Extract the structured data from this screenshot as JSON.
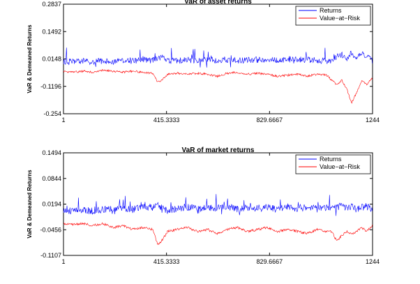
{
  "chart_data": [
    {
      "type": "line",
      "title": "VaR of asset returns",
      "xlabel": "",
      "ylabel": "VaR & Demeaned Returns",
      "xlim": [
        1,
        1244
      ],
      "ylim": [
        -0.254,
        0.2837
      ],
      "xticks": [
        "1",
        "415.3333",
        "829.6667",
        "1244"
      ],
      "yticks": [
        "0.2837",
        "0.1492",
        "0.0148",
        "-0.1196",
        "-0.254"
      ],
      "legend": {
        "position": "top-right",
        "entries": [
          "Returns",
          "Value−at−Risk"
        ]
      },
      "series": [
        {
          "name": "Returns",
          "color": "#0000ff",
          "x": [
            1,
            40,
            80,
            120,
            160,
            200,
            240,
            280,
            320,
            360,
            380,
            400,
            420,
            460,
            500,
            540,
            580,
            620,
            660,
            700,
            740,
            780,
            820,
            860,
            900,
            940,
            980,
            1020,
            1060,
            1080,
            1100,
            1120,
            1140,
            1160,
            1180,
            1200,
            1220,
            1244
          ],
          "values": [
            0.01,
            0.005,
            0.012,
            0.004,
            0.015,
            0.0,
            0.025,
            0.01,
            0.03,
            0.02,
            0.05,
            0.06,
            0.015,
            0.02,
            0.025,
            0.02,
            0.03,
            0.025,
            0.035,
            0.02,
            0.025,
            0.03,
            0.03,
            0.025,
            0.04,
            0.03,
            0.035,
            0.02,
            0.015,
            0.02,
            0.08,
            0.1,
            0.05,
            0.13,
            0.07,
            0.11,
            0.08,
            0.02
          ]
        },
        {
          "name": "Value−at−Risk",
          "color": "#ff0000",
          "x": [
            1,
            40,
            80,
            120,
            160,
            200,
            240,
            280,
            320,
            360,
            380,
            400,
            420,
            460,
            500,
            540,
            580,
            620,
            660,
            700,
            740,
            780,
            820,
            860,
            900,
            940,
            980,
            1020,
            1060,
            1080,
            1100,
            1120,
            1140,
            1160,
            1180,
            1200,
            1220,
            1244
          ],
          "values": [
            -0.045,
            -0.05,
            -0.045,
            -0.05,
            -0.04,
            -0.045,
            -0.05,
            -0.045,
            -0.05,
            -0.055,
            -0.1,
            -0.085,
            -0.06,
            -0.055,
            -0.06,
            -0.055,
            -0.06,
            -0.07,
            -0.055,
            -0.05,
            -0.06,
            -0.055,
            -0.06,
            -0.07,
            -0.065,
            -0.06,
            -0.07,
            -0.06,
            -0.065,
            -0.09,
            -0.11,
            -0.09,
            -0.13,
            -0.2,
            -0.15,
            -0.09,
            -0.11,
            -0.08
          ]
        }
      ]
    },
    {
      "type": "line",
      "title": "VaR of market returns",
      "xlabel": "",
      "ylabel": "VaR & Demeaned Returns",
      "xlim": [
        1,
        1244
      ],
      "ylim": [
        -0.1107,
        0.1494
      ],
      "xticks": [
        "1",
        "415.3333",
        "829.6667",
        "1244"
      ],
      "yticks": [
        "0.1494",
        "0.0844",
        "0.0194",
        "-0.0456",
        "-0.1107"
      ],
      "legend": {
        "position": "top-right",
        "entries": [
          "Returns",
          "Value−at−Risk"
        ]
      },
      "series": [
        {
          "name": "Returns",
          "color": "#0000ff",
          "x": [
            1,
            40,
            80,
            120,
            160,
            200,
            240,
            280,
            320,
            360,
            380,
            400,
            420,
            460,
            500,
            540,
            580,
            620,
            660,
            700,
            740,
            780,
            820,
            860,
            900,
            940,
            980,
            1020,
            1060,
            1080,
            1100,
            1120,
            1140,
            1160,
            1180,
            1200,
            1220,
            1244
          ],
          "values": [
            0.01,
            0.005,
            0.012,
            0.008,
            0.015,
            0.02,
            0.03,
            0.015,
            0.04,
            0.03,
            0.05,
            0.02,
            0.01,
            0.025,
            0.035,
            0.02,
            0.03,
            0.025,
            0.035,
            0.02,
            0.03,
            0.025,
            0.03,
            0.02,
            0.04,
            0.025,
            0.035,
            0.02,
            0.03,
            0.025,
            0.03,
            0.045,
            0.02,
            0.035,
            0.02,
            0.03,
            0.04,
            0.005
          ]
        },
        {
          "name": "Value−at−Risk",
          "color": "#ff0000",
          "x": [
            1,
            40,
            80,
            120,
            160,
            200,
            240,
            280,
            320,
            360,
            380,
            400,
            420,
            460,
            500,
            540,
            580,
            620,
            660,
            700,
            740,
            780,
            820,
            860,
            900,
            940,
            980,
            1020,
            1060,
            1080,
            1100,
            1120,
            1140,
            1160,
            1180,
            1200,
            1220,
            1244
          ],
          "values": [
            -0.03,
            -0.032,
            -0.03,
            -0.035,
            -0.03,
            -0.04,
            -0.035,
            -0.045,
            -0.04,
            -0.045,
            -0.085,
            -0.07,
            -0.05,
            -0.045,
            -0.04,
            -0.05,
            -0.045,
            -0.055,
            -0.045,
            -0.04,
            -0.05,
            -0.045,
            -0.04,
            -0.05,
            -0.045,
            -0.05,
            -0.055,
            -0.045,
            -0.05,
            -0.05,
            -0.075,
            -0.06,
            -0.05,
            -0.055,
            -0.05,
            -0.04,
            -0.05,
            -0.035
          ]
        }
      ]
    }
  ]
}
